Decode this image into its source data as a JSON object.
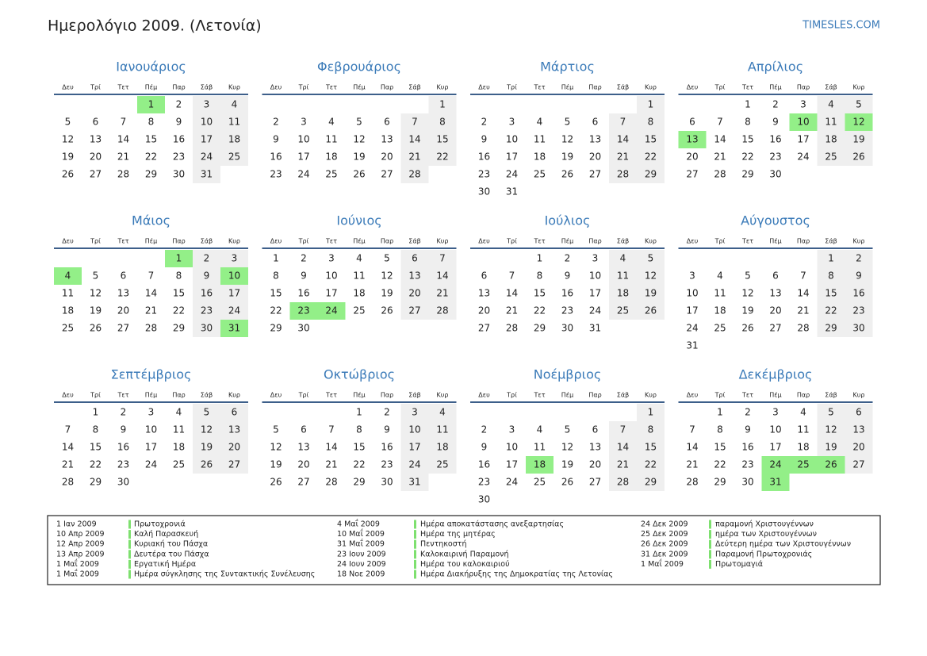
{
  "header": {
    "title": "Ημερολόγιο 2009. (Λετονία)",
    "site": "TIMESLES.COM"
  },
  "weekdays": [
    "Δευ",
    "Τρί",
    "Τετ",
    "Πέμ",
    "Παρ",
    "Σάβ",
    "Κυρ"
  ],
  "months": [
    {
      "name": "Ιανουάριος",
      "holidays": [
        1
      ],
      "cells": [
        null,
        null,
        null,
        1,
        2,
        3,
        4,
        5,
        6,
        7,
        8,
        9,
        10,
        11,
        12,
        13,
        14,
        15,
        16,
        17,
        18,
        19,
        20,
        21,
        22,
        23,
        24,
        25,
        26,
        27,
        28,
        29,
        30,
        31
      ]
    },
    {
      "name": "Φεβρουάριος",
      "holidays": [],
      "cells": [
        null,
        null,
        null,
        null,
        null,
        null,
        1,
        2,
        3,
        4,
        5,
        6,
        7,
        8,
        9,
        10,
        11,
        12,
        13,
        14,
        15,
        16,
        17,
        18,
        19,
        20,
        21,
        22,
        23,
        24,
        25,
        26,
        27,
        28
      ]
    },
    {
      "name": "Μάρτιος",
      "holidays": [],
      "cells": [
        null,
        null,
        null,
        null,
        null,
        null,
        1,
        2,
        3,
        4,
        5,
        6,
        7,
        8,
        9,
        10,
        11,
        12,
        13,
        14,
        15,
        16,
        17,
        18,
        19,
        20,
        21,
        22,
        23,
        24,
        25,
        26,
        27,
        28,
        29,
        30,
        31
      ]
    },
    {
      "name": "Απρίλιος",
      "holidays": [
        10,
        12,
        13
      ],
      "cells": [
        null,
        null,
        1,
        2,
        3,
        4,
        5,
        6,
        7,
        8,
        9,
        10,
        11,
        12,
        13,
        14,
        15,
        16,
        17,
        18,
        19,
        20,
        21,
        22,
        23,
        24,
        25,
        26,
        27,
        28,
        29,
        30
      ]
    },
    {
      "name": "Μάιος",
      "holidays": [
        1,
        4,
        10,
        31
      ],
      "cells": [
        null,
        null,
        null,
        null,
        1,
        2,
        3,
        4,
        5,
        6,
        7,
        8,
        9,
        10,
        11,
        12,
        13,
        14,
        15,
        16,
        17,
        18,
        19,
        20,
        21,
        22,
        23,
        24,
        25,
        26,
        27,
        28,
        29,
        30,
        31
      ]
    },
    {
      "name": "Ιούνιος",
      "holidays": [
        23,
        24
      ],
      "cells": [
        1,
        2,
        3,
        4,
        5,
        6,
        7,
        8,
        9,
        10,
        11,
        12,
        13,
        14,
        15,
        16,
        17,
        18,
        19,
        20,
        21,
        22,
        23,
        24,
        25,
        26,
        27,
        28,
        29,
        30
      ]
    },
    {
      "name": "Ιούλιος",
      "holidays": [],
      "cells": [
        null,
        null,
        1,
        2,
        3,
        4,
        5,
        6,
        7,
        8,
        9,
        10,
        11,
        12,
        13,
        14,
        15,
        16,
        17,
        18,
        19,
        20,
        21,
        22,
        23,
        24,
        25,
        26,
        27,
        28,
        29,
        30,
        31
      ]
    },
    {
      "name": "Αύγουστος",
      "holidays": [],
      "cells": [
        null,
        null,
        null,
        null,
        null,
        1,
        2,
        3,
        4,
        5,
        6,
        7,
        8,
        9,
        10,
        11,
        12,
        13,
        14,
        15,
        16,
        17,
        18,
        19,
        20,
        21,
        22,
        23,
        24,
        25,
        26,
        27,
        28,
        29,
        30,
        31
      ]
    },
    {
      "name": "Σεπτέμβριος",
      "holidays": [],
      "cells": [
        null,
        1,
        2,
        3,
        4,
        5,
        6,
        7,
        8,
        9,
        10,
        11,
        12,
        13,
        14,
        15,
        16,
        17,
        18,
        19,
        20,
        21,
        22,
        23,
        24,
        25,
        26,
        27,
        28,
        29,
        30
      ]
    },
    {
      "name": "Οκτώβριος",
      "holidays": [],
      "cells": [
        null,
        null,
        null,
        1,
        2,
        3,
        4,
        5,
        6,
        7,
        8,
        9,
        10,
        11,
        12,
        13,
        14,
        15,
        16,
        17,
        18,
        19,
        20,
        21,
        22,
        23,
        24,
        25,
        26,
        27,
        28,
        29,
        30,
        31
      ]
    },
    {
      "name": "Νοέμβριος",
      "holidays": [
        18
      ],
      "cells": [
        null,
        null,
        null,
        null,
        null,
        null,
        1,
        2,
        3,
        4,
        5,
        6,
        7,
        8,
        9,
        10,
        11,
        12,
        13,
        14,
        15,
        16,
        17,
        18,
        19,
        20,
        21,
        22,
        23,
        24,
        25,
        26,
        27,
        28,
        29,
        30
      ]
    },
    {
      "name": "Δεκέμβριος",
      "holidays": [
        24,
        25,
        26,
        31
      ],
      "cells": [
        null,
        1,
        2,
        3,
        4,
        5,
        6,
        7,
        8,
        9,
        10,
        11,
        12,
        13,
        14,
        15,
        16,
        17,
        18,
        19,
        20,
        21,
        22,
        23,
        24,
        25,
        26,
        27,
        28,
        29,
        30,
        31
      ]
    }
  ],
  "holiday_list": [
    [
      {
        "date": "1 Ιαν 2009",
        "name": "Πρωτοχρονιά"
      },
      {
        "date": "10 Απρ 2009",
        "name": "Καλή Παρασκευή"
      },
      {
        "date": "12 Απρ 2009",
        "name": "Κυριακή του Πάσχα"
      },
      {
        "date": "13 Απρ 2009",
        "name": "Δευτέρα του Πάσχα"
      },
      {
        "date": "1 Μαΐ 2009",
        "name": "Εργατική Ημέρα"
      },
      {
        "date": "1 Μαΐ 2009",
        "name": "Ημέρα σύγκλησης της Συντακτικής Συνέλευσης"
      }
    ],
    [
      {
        "date": "4 Μαΐ 2009",
        "name": "Ημέρα αποκατάστασης ανεξαρτησίας"
      },
      {
        "date": "10 Μαΐ 2009",
        "name": "Ημέρα της μητέρας"
      },
      {
        "date": "31 Μαΐ 2009",
        "name": "Πεντηκοστή"
      },
      {
        "date": "23 Ιουν 2009",
        "name": "Καλοκαιρινή Παραμονή"
      },
      {
        "date": "24 Ιουν 2009",
        "name": "Ημέρα του καλοκαιριού"
      },
      {
        "date": "18 Νοε 2009",
        "name": "Ημέρα Διακήρυξης της Δημοκρατίας της Λετονίας"
      }
    ],
    [
      {
        "date": "24 Δεκ 2009",
        "name": "παραμονή Χριστουγέννων"
      },
      {
        "date": "25 Δεκ 2009",
        "name": "ημέρα των Χριστουγέννων"
      },
      {
        "date": "26 Δεκ 2009",
        "name": "Δεύτερη ημέρα των Χριστουγέννων"
      },
      {
        "date": "31 Δεκ 2009",
        "name": "Παραμονή Πρωτοχρονιάς"
      },
      {
        "date": "1 Μαΐ 2009",
        "name": "Πρωτομαγιά"
      }
    ]
  ]
}
